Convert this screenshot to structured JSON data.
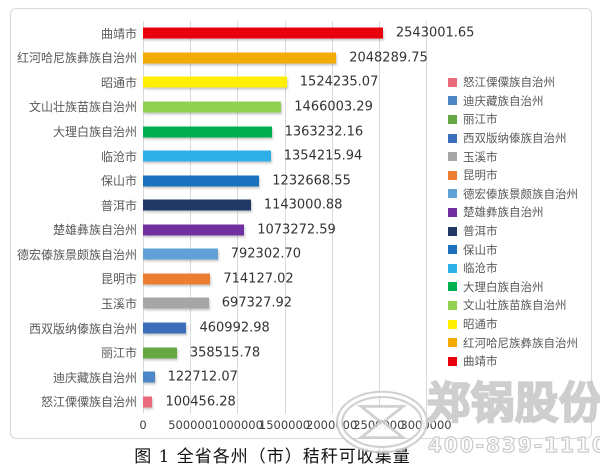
{
  "chart_data": {
    "type": "bar",
    "orientation": "horizontal",
    "caption": "图 1 全省各州（市）秸秆可收集量",
    "xlabel": "",
    "ylabel": "",
    "xlim": [
      0,
      3000000
    ],
    "grid": true,
    "legend_position": "right",
    "x_ticks": [
      "0",
      "500000",
      "1000000",
      "1500000",
      "2000000",
      "2500000",
      "3000000"
    ],
    "categories": [
      "曲靖市",
      "红河哈尼族彝族自治州",
      "昭通市",
      "文山壮族苗族自治州",
      "大理白族自治州",
      "临沧市",
      "保山市",
      "普洱市",
      "楚雄彝族自治州",
      "德宏傣族景颇族自治州",
      "昆明市",
      "玉溪市",
      "西双版纳傣族自治州",
      "丽江市",
      "迪庆藏族自治州",
      "怒江傈僳族自治州"
    ],
    "values": [
      2543001.65,
      2048289.75,
      1524235.07,
      1466003.29,
      1363232.16,
      1354215.94,
      1232668.55,
      1143000.88,
      1073272.59,
      792302.7,
      714127.02,
      697327.92,
      460992.98,
      358515.78,
      122712.07,
      100456.28
    ],
    "value_labels": [
      "2543001.65",
      "2048289.75",
      "1524235.07",
      "1466003.29",
      "1363232.16",
      "1354215.94",
      "1232668.55",
      "1143000.88",
      "1073272.59",
      "792302.70",
      "714127.02",
      "697327.92",
      "460992.98",
      "358515.78",
      "122712.07",
      "100456.28"
    ],
    "colors": [
      "#E8000D",
      "#F3AB00",
      "#FFF000",
      "#92D050",
      "#00B050",
      "#2FAFE8",
      "#1C71BE",
      "#1F3864",
      "#7030A0",
      "#5FA0D6",
      "#ED7D31",
      "#A6A6A6",
      "#3C6EBC",
      "#67A743",
      "#4E87C8",
      "#E96B7B"
    ]
  },
  "legend": {
    "items": [
      {
        "label": "怒江傈僳族自治州",
        "color": "#E96B7B"
      },
      {
        "label": "迪庆藏族自治州",
        "color": "#4E87C8"
      },
      {
        "label": "丽江市",
        "color": "#67A743"
      },
      {
        "label": "西双版纳傣族自治州",
        "color": "#3C6EBC"
      },
      {
        "label": "玉溪市",
        "color": "#A6A6A6"
      },
      {
        "label": "昆明市",
        "color": "#ED7D31"
      },
      {
        "label": "德宏傣族景颇族自治州",
        "color": "#5FA0D6"
      },
      {
        "label": "楚雄彝族自治州",
        "color": "#7030A0"
      },
      {
        "label": "普洱市",
        "color": "#1F3864"
      },
      {
        "label": "保山市",
        "color": "#1C71BE"
      },
      {
        "label": "临沧市",
        "color": "#2FAFE8"
      },
      {
        "label": "大理白族自治州",
        "color": "#00B050"
      },
      {
        "label": "文山壮族苗族自治州",
        "color": "#92D050"
      },
      {
        "label": "昭通市",
        "color": "#FFF000"
      },
      {
        "label": "红河哈尼族彝族自治州",
        "color": "#F3AB00"
      },
      {
        "label": "曲靖市",
        "color": "#E8000D"
      }
    ]
  },
  "watermark": {
    "brand": "郑锅股份",
    "phone": "400-839-1110",
    "logo": "zg-ellipse-logo"
  },
  "ui_colors": {
    "frame_border": "#d9d9d9",
    "gridline": "#d9d9d9",
    "category_text": "#595959",
    "value_text": "#333333"
  }
}
